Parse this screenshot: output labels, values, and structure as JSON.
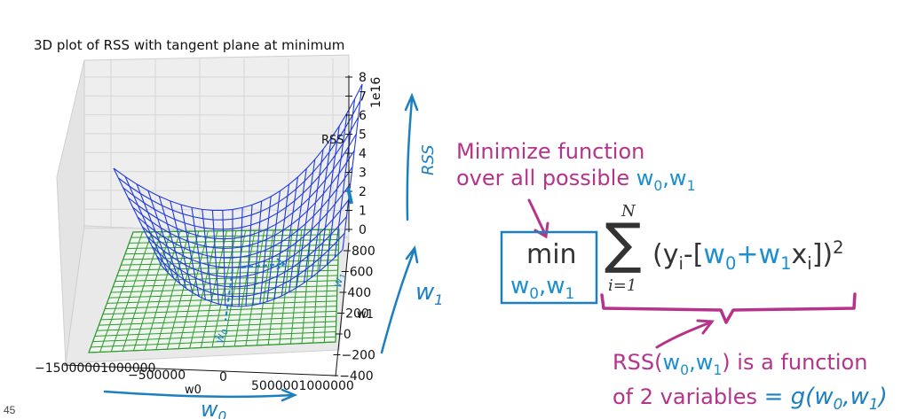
{
  "plot": {
    "title": "3D plot of RSS with tangent plane at minimum",
    "z_ticks": [
      "8",
      "7",
      "6",
      "5",
      "4",
      "3",
      "2",
      "1",
      "0"
    ],
    "z_label": "RSS",
    "z_scale": "1e16",
    "w1_ticks": [
      "800",
      "600",
      "400",
      "200",
      "0",
      "−200",
      "−400"
    ],
    "w1_label": "w1",
    "w0_ticks": [
      "−15000001000000",
      "−500000",
      "0",
      "5000001000000"
    ],
    "w0_label": "w0",
    "surface_color": "#1f3ae0",
    "plane_color": "#2e9a2e"
  },
  "annotations": {
    "rss_handwritten": "RSS",
    "w1_handwritten": "w",
    "w1_handwritten_sub": "1",
    "w0_handwritten": "w",
    "w0_handwritten_sub": "0",
    "w0_small": "ŵ",
    "w0_small_sub": "0",
    "w1_small": "w",
    "w1_small_sub": "1",
    "ink_blue": "#1b7fc0",
    "ink_magenta": "#b5338a"
  },
  "note_top": {
    "line1": "Minimize function",
    "line2_prefix": "over all possible ",
    "w": "w",
    "sub0": "0",
    "comma": ",",
    "sub1": "1"
  },
  "formula": {
    "min": "min",
    "under_w": "w",
    "under_sub0": "0",
    "under_comma": ",",
    "under_sub1": "1",
    "sum_top": "N",
    "sum_symbol": "∑",
    "sum_bottom": "i=1",
    "open": "(y",
    "sub_i": "i",
    "minus_bracket": "-[",
    "w": "w",
    "sub0": "0",
    "plus": "+",
    "sub1": "1",
    "x": "x",
    "close": "])",
    "power": "2"
  },
  "note_bottom": {
    "line1_prefix": "RSS(",
    "w": "w",
    "sub0": "0",
    "comma": ",",
    "sub1": "1",
    "line1_suffix": ") is a function",
    "line2": "of 2 variables",
    "eq_handwritten": "= g(w",
    "eq_sub0": "0",
    "eq_comma": ",w",
    "eq_sub1": "1",
    "eq_close": ")"
  },
  "footer": {
    "slide_number": "45"
  }
}
